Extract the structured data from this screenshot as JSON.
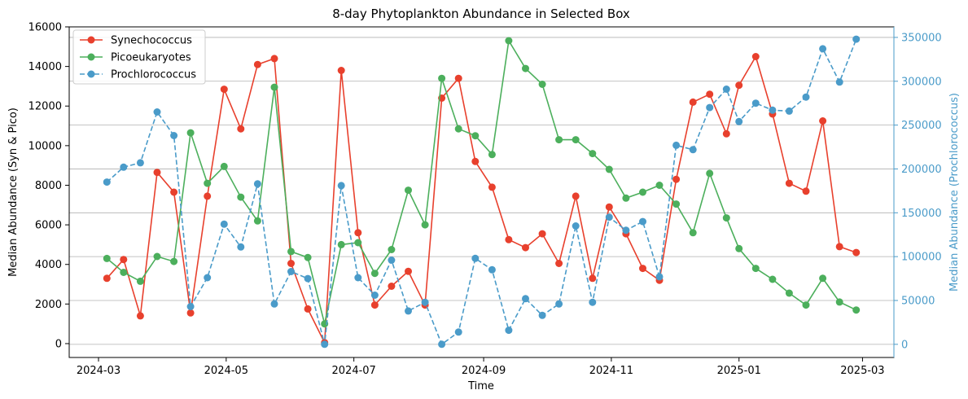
{
  "chart_data": {
    "type": "line",
    "title": "8-day Phytoplankton Abundance in Selected Box",
    "xlabel": "Time",
    "ylabel_left": "Median Abundance (Syn & Pico)",
    "ylabel_right": "Median Abundance (Prochlorococcus)",
    "ylim_left": [
      -700,
      16000
    ],
    "ylim_right": [
      -15000,
      362000
    ],
    "yticks_left": [
      0,
      2000,
      4000,
      6000,
      8000,
      10000,
      12000,
      14000,
      16000
    ],
    "yticks_right": [
      0,
      50000,
      100000,
      150000,
      200000,
      250000,
      300000,
      350000
    ],
    "xlim": [
      "2024-02-16",
      "2025-03-16"
    ],
    "xticks": [
      "2024-03",
      "2024-05",
      "2024-07",
      "2024-09",
      "2024-11",
      "2025-01",
      "2025-03"
    ],
    "grid": "horizontal lines from right axis",
    "legend_position": "top-left",
    "x": [
      "2024-03-05",
      "2024-03-13",
      "2024-03-21",
      "2024-03-29",
      "2024-04-06",
      "2024-04-14",
      "2024-04-22",
      "2024-04-30",
      "2024-05-08",
      "2024-05-16",
      "2024-05-24",
      "2024-06-01",
      "2024-06-09",
      "2024-06-17",
      "2024-06-25",
      "2024-07-03",
      "2024-07-11",
      "2024-07-19",
      "2024-07-27",
      "2024-08-04",
      "2024-08-12",
      "2024-08-20",
      "2024-08-28",
      "2024-09-05",
      "2024-09-13",
      "2024-09-21",
      "2024-09-29",
      "2024-10-07",
      "2024-10-15",
      "2024-10-23",
      "2024-10-31",
      "2024-11-08",
      "2024-11-16",
      "2024-11-24",
      "2024-12-02",
      "2024-12-10",
      "2024-12-18",
      "2024-12-26",
      "2025-01-01",
      "2025-01-09",
      "2025-01-17",
      "2025-01-25",
      "2025-02-02",
      "2025-02-10",
      "2025-02-18",
      "2025-02-26"
    ],
    "series": [
      {
        "name": "Synechococcus",
        "axis": "left",
        "style": "solid",
        "color": "#e8402d",
        "values": [
          3300,
          4250,
          1400,
          8650,
          7650,
          1550,
          7450,
          12850,
          10850,
          14100,
          14400,
          4050,
          1750,
          50,
          13800,
          5600,
          1950,
          2900,
          3650,
          1950,
          12400,
          13400,
          9200,
          7900,
          5250,
          4850,
          5550,
          4050,
          7450,
          3300,
          6900,
          5550,
          3800,
          3200,
          8300,
          12200,
          12600,
          10600,
          13050,
          14500,
          11600,
          8100,
          7700,
          11250,
          4900,
          4600
        ]
      },
      {
        "name": "Picoeukaryotes",
        "axis": "left",
        "style": "solid",
        "color": "#4caf5c",
        "values": [
          4300,
          3600,
          3150,
          4400,
          4150,
          10650,
          8100,
          8950,
          7400,
          6200,
          12950,
          4650,
          4350,
          1000,
          5000,
          5100,
          3550,
          4750,
          7750,
          6000,
          13400,
          10850,
          10500,
          9550,
          15300,
          13900,
          13100,
          10300,
          10300,
          9600,
          8800,
          7350,
          7650,
          8000,
          7050,
          5600,
          8600,
          6350,
          4800,
          3800,
          3250,
          2550,
          1950,
          3300,
          2100,
          1700
        ]
      },
      {
        "name": "Prochlorococcus",
        "axis": "right",
        "style": "dashed",
        "color": "#4a9bc9",
        "values": [
          185000,
          202000,
          207000,
          265000,
          238000,
          43000,
          76000,
          137000,
          111000,
          183000,
          46000,
          83000,
          75000,
          0,
          181000,
          76000,
          56000,
          96000,
          38000,
          48000,
          0,
          14000,
          98000,
          85000,
          16000,
          52000,
          33000,
          46000,
          135000,
          48000,
          145000,
          130000,
          140000,
          77000,
          227000,
          222000,
          270000,
          291000,
          254000,
          275000,
          267000,
          266000,
          282000,
          337000,
          299000,
          348000
        ]
      }
    ]
  }
}
